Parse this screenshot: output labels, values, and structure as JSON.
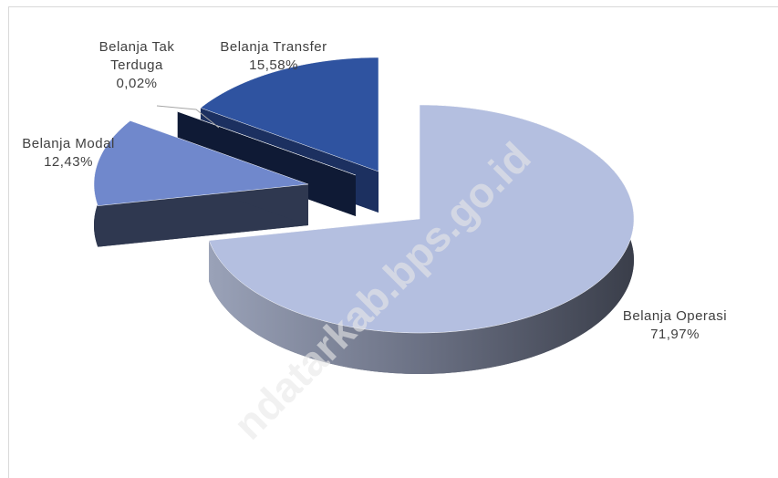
{
  "chart_data": {
    "type": "pie",
    "categories": [
      "Belanja Operasi",
      "Belanja Modal",
      "Belanja Tak Terduga",
      "Belanja Transfer"
    ],
    "values": [
      71.97,
      12.43,
      0.02,
      15.58
    ],
    "value_labels": [
      "71,97%",
      "12,43%",
      "0,02%",
      "15,58%"
    ],
    "colors": [
      "#b4bfe0",
      "#7088cc",
      "#1c2c55",
      "#2f53a0"
    ],
    "side_colors": [
      "#5b6070",
      "#2f3850",
      "#0f1a35",
      "#1c3060"
    ],
    "watermark": "ndatarkab.bps.go.id"
  }
}
